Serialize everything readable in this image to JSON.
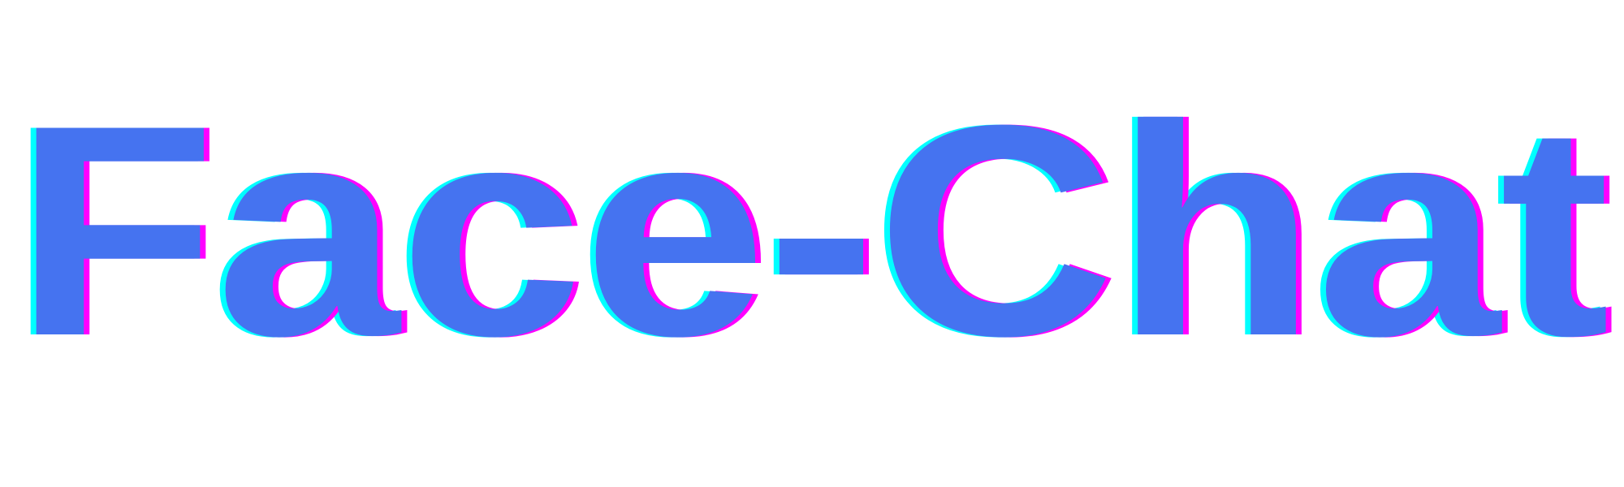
{
  "logo": {
    "text": "Face-Chat"
  },
  "colors": {
    "background": "#ffffff",
    "primary": "#4573F0",
    "shadow_left": "#00FFFF",
    "shadow_right": "#FF00FF"
  }
}
